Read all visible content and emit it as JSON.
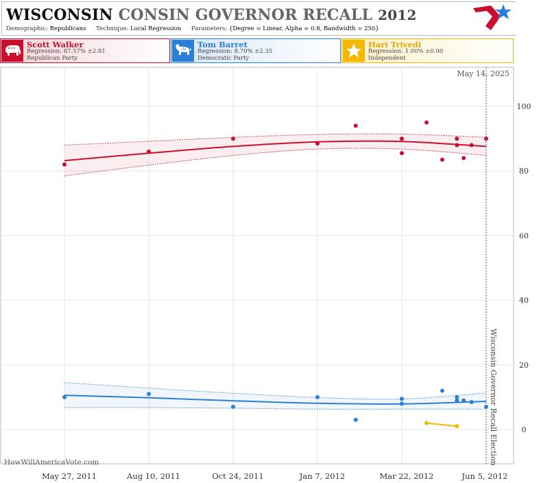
{
  "header": {
    "title_state": "WISCONSIN",
    "title_rest": "CONSIN GOVERNOR RECALL",
    "title_year": "2012",
    "demographic_label": "Demographic:",
    "demographic_value": "Republicans",
    "technique_label": "Technique:",
    "technique_value": "Local Regression",
    "parameters_label": "Parameters:",
    "parameters_value": "{Degree = Linear, Alpha = 0.8, Bandwidth = 250}"
  },
  "candidates": [
    {
      "name": "Scott Walker",
      "regression": "Regression: 87.57% ±2.81",
      "party": "Republican Party",
      "icon": "elephant-icon",
      "color": "#c8102e"
    },
    {
      "name": "Tom Barret",
      "regression": "Regression: 8.70% ±2.35",
      "party": "Democratic Party",
      "icon": "donkey-icon",
      "color": "#2b7fd6"
    },
    {
      "name": "Hari Trivedi",
      "regression": "Regression: 1.00% ±0.00",
      "party": "Independent",
      "icon": "star-icon",
      "color": "#f5b800"
    }
  ],
  "watermark": "HowWillAmericaVote.com",
  "chart_data": {
    "type": "scatter",
    "x_start": "May 27, 2011",
    "x_end": "Jun 5, 2012",
    "xticks": [
      "May 27, 2011",
      "Aug 10, 2011",
      "Oct 24, 2011",
      "Jan 7, 2012",
      "Mar 22, 2012",
      "Jun 5, 2012"
    ],
    "yticks": [
      0,
      20,
      40,
      60,
      80,
      100
    ],
    "ylim": [
      -8,
      112
    ],
    "y_axis_side": "right",
    "today_label": "May 14, 2025",
    "election_label": "Wisconsin Governor Recall Election",
    "series": [
      {
        "name": "Scott Walker",
        "color": "#c8102e",
        "points": [
          [
            "2011-05-27",
            82
          ],
          [
            "2011-08-10",
            86
          ],
          [
            "2011-10-24",
            90
          ],
          [
            "2012-01-07",
            88.5
          ],
          [
            "2012-02-10",
            94
          ],
          [
            "2012-03-22",
            90
          ],
          [
            "2012-03-22",
            85.5
          ],
          [
            "2012-04-13",
            95
          ],
          [
            "2012-04-27",
            83.5
          ],
          [
            "2012-05-10",
            90
          ],
          [
            "2012-05-10",
            88
          ],
          [
            "2012-05-16",
            84
          ],
          [
            "2012-05-23",
            88
          ],
          [
            "2012-06-05",
            90
          ]
        ],
        "trend": [
          [
            "2011-05-27",
            83.2
          ],
          [
            "2011-08-10",
            85.5
          ],
          [
            "2011-10-24",
            87.6
          ],
          [
            "2012-01-07",
            89.0
          ],
          [
            "2012-03-22",
            89.1
          ],
          [
            "2012-06-05",
            87.6
          ]
        ],
        "band_upper": [
          [
            "2011-05-27",
            88.0
          ],
          [
            "2011-08-10",
            89.2
          ],
          [
            "2011-10-24",
            90.4
          ],
          [
            "2012-01-07",
            91.3
          ],
          [
            "2012-03-22",
            91.4
          ],
          [
            "2012-06-05",
            90.4
          ]
        ],
        "band_lower": [
          [
            "2011-05-27",
            78.5
          ],
          [
            "2011-08-10",
            81.8
          ],
          [
            "2011-10-24",
            84.8
          ],
          [
            "2012-01-07",
            86.8
          ],
          [
            "2012-03-22",
            86.8
          ],
          [
            "2012-06-05",
            84.8
          ]
        ]
      },
      {
        "name": "Tom Barret",
        "color": "#2b7fd6",
        "points": [
          [
            "2011-05-27",
            10
          ],
          [
            "2011-08-10",
            11
          ],
          [
            "2011-10-24",
            7
          ],
          [
            "2012-01-07",
            10
          ],
          [
            "2012-02-10",
            3
          ],
          [
            "2012-03-22",
            9.5
          ],
          [
            "2012-03-22",
            8
          ],
          [
            "2012-04-27",
            12
          ],
          [
            "2012-05-10",
            10
          ],
          [
            "2012-05-10",
            9
          ],
          [
            "2012-05-16",
            9
          ],
          [
            "2012-05-23",
            8.5
          ],
          [
            "2012-06-05",
            7
          ]
        ],
        "trend": [
          [
            "2011-05-27",
            10.6
          ],
          [
            "2011-08-10",
            9.8
          ],
          [
            "2011-10-24",
            8.9
          ],
          [
            "2012-01-07",
            8.1
          ],
          [
            "2012-03-22",
            7.9
          ],
          [
            "2012-06-05",
            8.7
          ]
        ],
        "band_upper": [
          [
            "2011-05-27",
            14.5
          ],
          [
            "2011-08-10",
            12.8
          ],
          [
            "2011-10-24",
            11.2
          ],
          [
            "2012-01-07",
            9.9
          ],
          [
            "2012-03-22",
            9.4
          ],
          [
            "2012-06-05",
            11.3
          ]
        ],
        "band_lower": [
          [
            "2011-05-27",
            6.8
          ],
          [
            "2011-08-10",
            6.8
          ],
          [
            "2011-10-24",
            6.6
          ],
          [
            "2012-01-07",
            6.3
          ],
          [
            "2012-03-22",
            6.3
          ],
          [
            "2012-06-05",
            6.3
          ]
        ]
      },
      {
        "name": "Hari Trivedi",
        "color": "#f5b800",
        "points": [
          [
            "2012-04-13",
            2
          ],
          [
            "2012-05-10",
            1
          ]
        ],
        "trend": [
          [
            "2012-04-13",
            2
          ],
          [
            "2012-05-10",
            1
          ]
        ]
      }
    ]
  }
}
